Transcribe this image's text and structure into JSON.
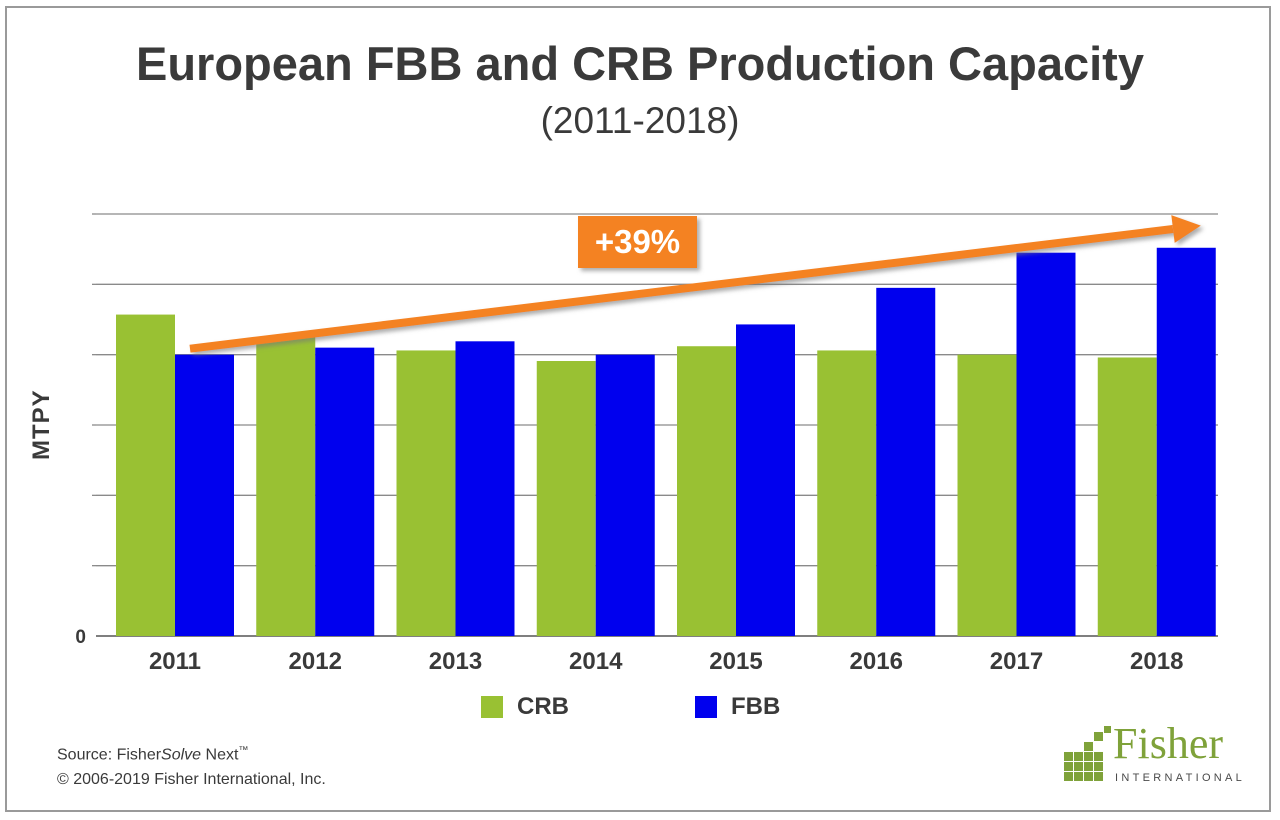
{
  "chart_data": {
    "type": "bar",
    "title": "European FBB and CRB Production Capacity",
    "subtitle": "(2011-2018)",
    "ylabel": "MTPY",
    "xlabel": "",
    "categories": [
      "2011",
      "2012",
      "2013",
      "2014",
      "2015",
      "2016",
      "2017",
      "2018"
    ],
    "series": [
      {
        "name": "CRB",
        "color": "#99c133",
        "values": [
          4.57,
          4.25,
          4.06,
          3.91,
          4.12,
          4.06,
          4.0,
          3.96
        ]
      },
      {
        "name": "FBB",
        "color": "#0000ee",
        "values": [
          4.0,
          4.1,
          4.19,
          4.0,
          4.43,
          4.95,
          5.45,
          5.52
        ]
      }
    ],
    "yticks": [
      "0"
    ],
    "ylim": [
      0,
      6
    ],
    "grid": true,
    "legend_position": "bottom-center",
    "annotation": {
      "text": "+39%",
      "type": "trend-arrow",
      "color": "#f48220",
      "from_category": "2011",
      "to_category": "2018"
    }
  },
  "footer": {
    "source_prefix": "Source: Fisher",
    "source_italic": "Solve",
    "source_suffix": " Next",
    "source_tm": "™",
    "copyright": "© 2006-2019 Fisher International, Inc."
  },
  "logo": {
    "word": "Fisher",
    "subword": "INTERNATIONAL"
  }
}
